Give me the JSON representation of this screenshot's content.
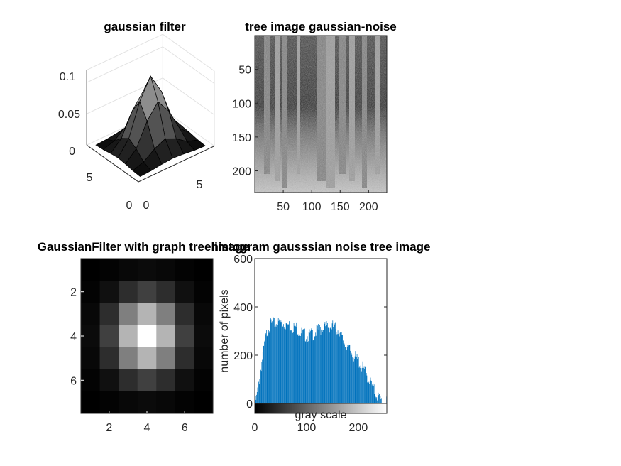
{
  "chart_data": [
    {
      "type": "surface",
      "title": "gaussian filter",
      "matrix_size": 7,
      "sigma": 1.2,
      "x_ticks": [
        "0",
        "5"
      ],
      "y_ticks": [
        "0",
        "5"
      ],
      "z_ticks": [
        "0",
        "0.05",
        "0.1"
      ],
      "zlim": [
        0,
        0.12
      ],
      "colormap": "gray"
    },
    {
      "type": "image",
      "title": "tree image gaussian-noise",
      "x_ticks": [
        "50",
        "100",
        "150",
        "200"
      ],
      "y_ticks": [
        "50",
        "100",
        "150",
        "200"
      ],
      "xlim": [
        0,
        232
      ],
      "ylim": [
        0,
        232
      ],
      "colormap": "gray"
    },
    {
      "type": "heatmap",
      "title": "GaussianFilter with graph tree image",
      "x_ticks": [
        "2",
        "4",
        "6"
      ],
      "y_ticks": [
        "2",
        "4",
        "6"
      ],
      "size": 7,
      "sigma": 1.2,
      "colormap": "gray"
    },
    {
      "type": "bar",
      "title": "histogram gausssian noise tree image",
      "xlabel": "gray scale",
      "ylabel": "number of pixels",
      "xlim": [
        0,
        255
      ],
      "ylim": [
        0,
        600
      ],
      "x_ticks": [
        "0",
        "100",
        "200"
      ],
      "y_ticks": [
        "0",
        "200",
        "400",
        "600"
      ],
      "bar_color": "#0072BD",
      "colorbar": "gray",
      "envelope": [
        [
          0,
          0
        ],
        [
          3,
          20
        ],
        [
          6,
          70
        ],
        [
          10,
          130
        ],
        [
          15,
          200
        ],
        [
          20,
          265
        ],
        [
          25,
          315
        ],
        [
          30,
          328
        ],
        [
          40,
          330
        ],
        [
          50,
          335
        ],
        [
          60,
          330
        ],
        [
          70,
          320
        ],
        [
          80,
          315
        ],
        [
          90,
          290
        ],
        [
          100,
          280
        ],
        [
          110,
          285
        ],
        [
          120,
          300
        ],
        [
          130,
          310
        ],
        [
          140,
          320
        ],
        [
          150,
          318
        ],
        [
          160,
          305
        ],
        [
          170,
          260
        ],
        [
          180,
          230
        ],
        [
          190,
          200
        ],
        [
          200,
          175
        ],
        [
          210,
          140
        ],
        [
          220,
          100
        ],
        [
          230,
          55
        ],
        [
          240,
          20
        ],
        [
          248,
          5
        ],
        [
          255,
          0
        ]
      ]
    }
  ]
}
